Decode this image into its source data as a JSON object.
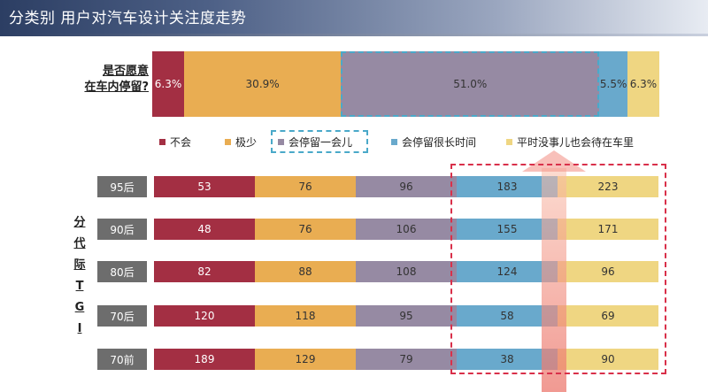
{
  "header": {
    "title": "分类别 用户对汽车设计关注度走势"
  },
  "colors": {
    "buhui": "#a32f43",
    "jishao": "#e9ad52",
    "yihuier": "#968aa3",
    "hen_chang": "#69a9cc",
    "pingshi": "#efd682"
  },
  "chart_data": [
    {
      "type": "bar",
      "stacked": true,
      "orientation": "horizontal",
      "question": [
        "是否愿意",
        "在车内停留?"
      ],
      "categories": [
        "是否愿意在车内停留?"
      ],
      "series": [
        {
          "name": "不会",
          "values": [
            6.3
          ],
          "label": "6.3%"
        },
        {
          "name": "极少",
          "values": [
            30.9
          ],
          "label": "30.9%"
        },
        {
          "name": "会停留一会儿",
          "values": [
            51.0
          ],
          "label": "51.0%"
        },
        {
          "name": "会停留很长时间",
          "values": [
            5.5
          ],
          "label": "5.5%"
        },
        {
          "name": "平时没事儿也会待在车里",
          "values": [
            6.3
          ],
          "label": "6.3%"
        }
      ],
      "legend": "below",
      "highlighted_series": "会停留一会儿"
    },
    {
      "type": "bar",
      "stacked": true,
      "orientation": "horizontal",
      "group_label": [
        "分",
        "代",
        "际",
        "T",
        "G",
        "I"
      ],
      "categories": [
        "95后",
        "90后",
        "80后",
        "70后",
        "70前"
      ],
      "series": [
        {
          "name": "不会",
          "values": [
            53,
            48,
            82,
            120,
            189
          ]
        },
        {
          "name": "极少",
          "values": [
            76,
            76,
            88,
            118,
            129
          ]
        },
        {
          "name": "会停留一会儿",
          "values": [
            96,
            106,
            108,
            95,
            79
          ]
        },
        {
          "name": "会停留很长时间",
          "values": [
            183,
            155,
            124,
            58,
            38
          ]
        },
        {
          "name": "平时没事儿也会待在车里",
          "values": [
            223,
            171,
            96,
            69,
            90
          ]
        }
      ],
      "highlighted_series": [
        "会停留很长时间",
        "平时没事儿也会待在车里"
      ],
      "trend_arrow": "up"
    }
  ]
}
